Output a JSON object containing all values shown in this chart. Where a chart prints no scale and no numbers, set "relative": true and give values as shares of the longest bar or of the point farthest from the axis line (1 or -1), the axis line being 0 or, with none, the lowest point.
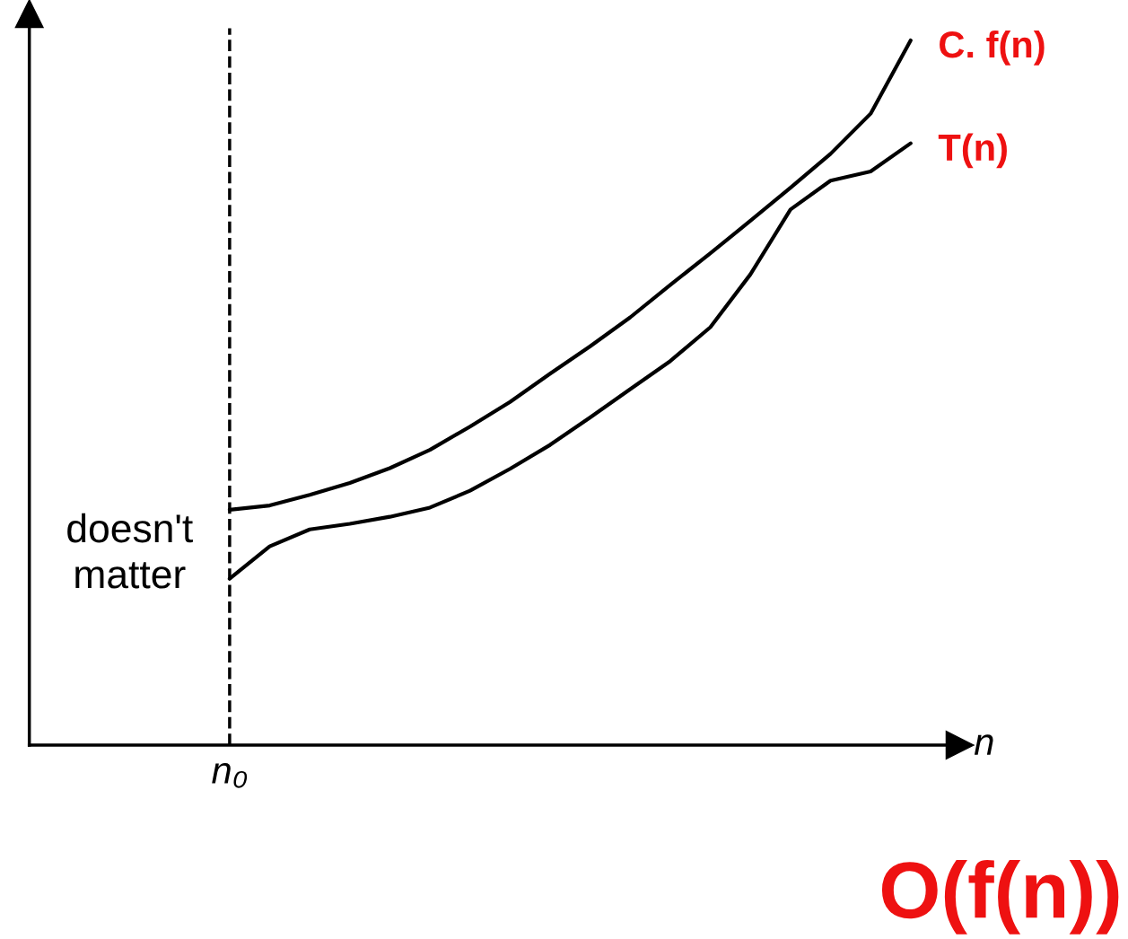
{
  "chart_data": {
    "type": "line",
    "title": "O(f(n))",
    "xlabel": "n",
    "relative": true,
    "legend": false,
    "marker": "none",
    "line_style": "solid",
    "categories": [
      null,
      null,
      null,
      null,
      null,
      null,
      null,
      null,
      null,
      null,
      null,
      null,
      null,
      null,
      null,
      null,
      null,
      null
    ],
    "ref_lines": [
      {
        "axis": "x",
        "label": "n₀",
        "color": "#000000",
        "line_style": "dashed"
      }
    ],
    "annotations": [
      "doesn't matter"
    ],
    "series": [
      {
        "name": "C. f(n)",
        "color": "#000000",
        "values": [
          0.334,
          0.34,
          0.355,
          0.372,
          0.393,
          0.419,
          0.452,
          0.487,
          0.527,
          0.566,
          0.607,
          0.653,
          0.698,
          0.744,
          0.791,
          0.839,
          0.896,
          1.0
        ]
      },
      {
        "name": "T(n)",
        "color": "#000000",
        "values": [
          0.236,
          0.282,
          0.306,
          0.314,
          0.324,
          0.337,
          0.361,
          0.392,
          0.426,
          0.465,
          0.505,
          0.545,
          0.593,
          0.668,
          0.76,
          0.801,
          0.814,
          0.854
        ]
      }
    ]
  }
}
